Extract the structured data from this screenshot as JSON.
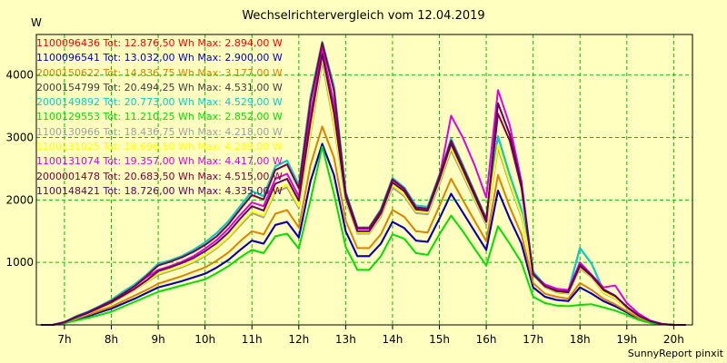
{
  "chart_data": {
    "type": "line",
    "title": "Wechselrichtervergleich vom 12.04.2019",
    "ylabel": "W",
    "footer": "SunnyReport pinxit",
    "ylim": [
      0,
      4650
    ],
    "xlim": [
      6.4,
      20.4
    ],
    "yticks": [
      1000,
      2000,
      3000,
      4000
    ],
    "xticks": [
      {
        "hour": 7,
        "label": "7h"
      },
      {
        "hour": 8,
        "label": "8h"
      },
      {
        "hour": 9,
        "label": "9h"
      },
      {
        "hour": 10,
        "label": "10h"
      },
      {
        "hour": 11,
        "label": "11h"
      },
      {
        "hour": 12,
        "label": "12h"
      },
      {
        "hour": 13,
        "label": "13h"
      },
      {
        "hour": 14,
        "label": "14h"
      },
      {
        "hour": 15,
        "label": "15h"
      },
      {
        "hour": 16,
        "label": "16h"
      },
      {
        "hour": 17,
        "label": "17h"
      },
      {
        "hour": 18,
        "label": "18h"
      },
      {
        "hour": 19,
        "label": "19h"
      },
      {
        "hour": 20,
        "label": "20h"
      }
    ],
    "x": [
      6.5,
      6.75,
      7.0,
      7.25,
      7.5,
      7.75,
      8.0,
      8.25,
      8.5,
      8.75,
      9.0,
      9.25,
      9.5,
      9.75,
      10.0,
      10.25,
      10.5,
      10.75,
      11.0,
      11.25,
      11.5,
      11.75,
      12.0,
      12.25,
      12.5,
      12.75,
      13.0,
      13.25,
      13.5,
      13.75,
      14.0,
      14.25,
      14.5,
      14.75,
      15.0,
      15.25,
      15.5,
      15.75,
      16.0,
      16.25,
      16.5,
      16.75,
      17.0,
      17.25,
      17.5,
      17.75,
      18.0,
      18.25,
      18.5,
      18.75,
      19.0,
      19.25,
      19.5,
      19.75,
      20.0,
      20.25
    ],
    "series": [
      {
        "name": "1100096436",
        "legend": "1100096436 Tot: 12.876,50 Wh Max: 2.894,00 W",
        "color": "#ff0000",
        "values": [
          0,
          0,
          30,
          90,
          140,
          200,
          260,
          340,
          420,
          510,
          600,
          650,
          700,
          760,
          820,
          920,
          1040,
          1200,
          1350,
          1300,
          1600,
          1650,
          1400,
          2300,
          2894,
          2400,
          1500,
          1100,
          1100,
          1300,
          1650,
          1550,
          1350,
          1330,
          1700,
          2100,
          1800,
          1500,
          1200,
          2150,
          1700,
          1300,
          600,
          450,
          400,
          380,
          600,
          500,
          380,
          300,
          200,
          100,
          40,
          10,
          0,
          0
        ]
      },
      {
        "name": "1100096541",
        "legend": "1100096541 Tot: 13.032,00 Wh Max: 2.900,00 W",
        "color": "#0000c0",
        "values": [
          0,
          0,
          30,
          90,
          140,
          200,
          260,
          340,
          420,
          510,
          600,
          650,
          700,
          760,
          820,
          920,
          1040,
          1200,
          1350,
          1300,
          1600,
          1650,
          1400,
          2300,
          2900,
          2400,
          1500,
          1100,
          1100,
          1300,
          1650,
          1550,
          1350,
          1330,
          1700,
          2100,
          1800,
          1500,
          1200,
          2150,
          1700,
          1300,
          600,
          450,
          400,
          380,
          600,
          500,
          380,
          300,
          200,
          100,
          40,
          10,
          0,
          0
        ]
      },
      {
        "name": "2000150622",
        "legend": "2000150622 Tot: 14.836,75 Wh Max: 3.177,00 W",
        "color": "#e08000",
        "values": [
          0,
          0,
          35,
          100,
          160,
          225,
          290,
          380,
          470,
          560,
          660,
          720,
          780,
          850,
          920,
          1030,
          1160,
          1340,
          1500,
          1450,
          1780,
          1840,
          1560,
          2560,
          3177,
          2680,
          1670,
          1230,
          1230,
          1450,
          1840,
          1730,
          1500,
          1480,
          1900,
          2340,
          2000,
          1670,
          1340,
          2400,
          1890,
          1450,
          670,
          500,
          450,
          420,
          670,
          560,
          420,
          330,
          220,
          110,
          45,
          10,
          0,
          0
        ]
      },
      {
        "name": "2000154799",
        "legend": "2000154799 Tot: 20.494,25 Wh Max: 4.531,00 W",
        "color": "#404040",
        "values": [
          0,
          0,
          45,
          140,
          210,
          300,
          400,
          530,
          650,
          800,
          980,
          1030,
          1100,
          1200,
          1320,
          1470,
          1660,
          1900,
          2140,
          2060,
          2540,
          2630,
          2240,
          3650,
          4531,
          3820,
          2130,
          1560,
          1560,
          1850,
          2350,
          2200,
          1910,
          1890,
          2400,
          2980,
          2560,
          2130,
          1700,
          3020,
          2400,
          1850,
          850,
          640,
          560,
          540,
          1230,
          980,
          550,
          460,
          290,
          150,
          60,
          15,
          0,
          0
        ]
      },
      {
        "name": "2000149892",
        "legend": "2000149892 Tot: 20.773,00 Wh Max: 4.529,00 W",
        "color": "#00d0d0",
        "values": [
          0,
          0,
          45,
          140,
          210,
          300,
          400,
          530,
          650,
          800,
          980,
          1030,
          1100,
          1200,
          1320,
          1470,
          1660,
          1900,
          2140,
          2060,
          2540,
          2630,
          2240,
          3650,
          4529,
          3820,
          2130,
          1560,
          1560,
          1850,
          2350,
          2200,
          1910,
          1890,
          2400,
          2980,
          2560,
          2130,
          1700,
          3020,
          2400,
          1850,
          850,
          640,
          560,
          540,
          1230,
          980,
          550,
          460,
          290,
          150,
          60,
          15,
          0,
          0
        ]
      },
      {
        "name": "1100129553",
        "legend": "1100129553 Tot: 11.210,25 Wh Max: 2.852,00 W",
        "color": "#00e000",
        "values": [
          0,
          0,
          25,
          70,
          110,
          160,
          210,
          290,
          370,
          450,
          530,
          580,
          630,
          680,
          730,
          830,
          940,
          1080,
          1200,
          1150,
          1420,
          1460,
          1220,
          2000,
          2852,
          2100,
          1250,
          880,
          880,
          1100,
          1450,
          1380,
          1150,
          1120,
          1450,
          1750,
          1500,
          1220,
          950,
          1580,
          1300,
          1000,
          450,
          350,
          310,
          300,
          320,
          330,
          280,
          230,
          160,
          80,
          30,
          8,
          0,
          0
        ]
      },
      {
        "name": "1100130966",
        "legend": "1100130966 Tot: 18.436,75 Wh Max: 4.218,00 W",
        "color": "#a0a0a0",
        "values": [
          0,
          0,
          40,
          110,
          180,
          260,
          340,
          450,
          560,
          680,
          800,
          860,
          920,
          1000,
          1100,
          1230,
          1390,
          1590,
          1790,
          1720,
          2130,
          2200,
          1870,
          3050,
          4218,
          3190,
          2000,
          1460,
          1460,
          1730,
          2200,
          2060,
          1790,
          1770,
          2250,
          2790,
          2400,
          2000,
          1600,
          2830,
          2250,
          1730,
          800,
          600,
          520,
          500,
          900,
          760,
          510,
          420,
          270,
          135,
          55,
          12,
          0,
          0
        ]
      },
      {
        "name": "1100131025",
        "legend": "1100131025 Tot: 18.696,50 Wh Max: 4.289,00 W",
        "color": "#ffff00",
        "values": [
          0,
          0,
          40,
          115,
          185,
          265,
          345,
          455,
          570,
          690,
          820,
          880,
          940,
          1020,
          1120,
          1250,
          1410,
          1620,
          1820,
          1750,
          2160,
          2240,
          1900,
          3100,
          4289,
          3240,
          2030,
          1480,
          1480,
          1760,
          2240,
          2090,
          1820,
          1800,
          2290,
          2840,
          2440,
          2030,
          1630,
          2880,
          2290,
          1760,
          810,
          610,
          530,
          510,
          920,
          770,
          520,
          430,
          275,
          140,
          55,
          12,
          0,
          0
        ]
      },
      {
        "name": "1100131074",
        "legend": "1100131074 Tot: 19.357,00 Wh Max: 4.417,00 W",
        "color": "#e000e0",
        "values": [
          0,
          0,
          45,
          130,
          200,
          290,
          380,
          500,
          620,
          760,
          880,
          940,
          1010,
          1100,
          1220,
          1360,
          1540,
          1760,
          1960,
          1900,
          2340,
          2420,
          2060,
          3380,
          4417,
          3540,
          2080,
          1540,
          1540,
          1820,
          2320,
          2180,
          1880,
          1860,
          2360,
          3350,
          3000,
          2560,
          2040,
          3760,
          3200,
          2300,
          800,
          650,
          580,
          560,
          1000,
          800,
          600,
          630,
          350,
          180,
          70,
          15,
          0,
          0
        ]
      },
      {
        "name": "2000001478",
        "legend": "2000001478 Tot: 20.683,50 Wh Max: 4.515,00 W",
        "color": "#800040",
        "values": [
          0,
          0,
          40,
          130,
          200,
          290,
          380,
          500,
          620,
          780,
          950,
          1010,
          1080,
          1170,
          1280,
          1420,
          1610,
          1850,
          2080,
          2010,
          2480,
          2570,
          2190,
          3580,
          4515,
          3750,
          2100,
          1550,
          1550,
          1830,
          2330,
          2180,
          1880,
          1860,
          2380,
          2950,
          2530,
          2110,
          1690,
          3380,
          2950,
          2200,
          820,
          620,
          540,
          520,
          940,
          780,
          560,
          460,
          290,
          150,
          60,
          14,
          0,
          0
        ]
      },
      {
        "name": "1100148421",
        "legend": "1100148421 Tot: 18.726,00 Wh Max: 4.335,00 W",
        "color": "#600060",
        "values": [
          0,
          0,
          40,
          120,
          190,
          275,
          360,
          470,
          580,
          710,
          860,
          920,
          990,
          1070,
          1180,
          1310,
          1480,
          1700,
          1900,
          1830,
          2260,
          2340,
          1990,
          3250,
          4335,
          3400,
          2050,
          1500,
          1500,
          1780,
          2280,
          2140,
          1850,
          1830,
          2330,
          2900,
          2490,
          2070,
          1650,
          3550,
          3050,
          2250,
          810,
          620,
          550,
          530,
          960,
          790,
          570,
          470,
          285,
          145,
          58,
          13,
          0,
          0
        ]
      }
    ]
  }
}
